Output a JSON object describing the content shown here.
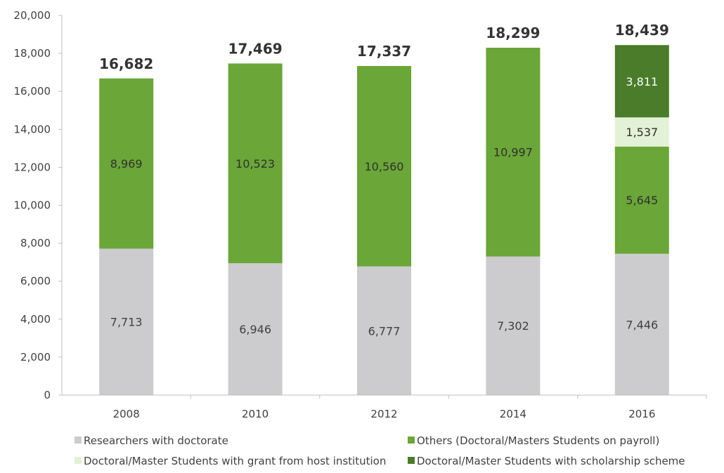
{
  "chart_data": {
    "type": "bar",
    "stacked": true,
    "categories": [
      "2008",
      "2010",
      "2012",
      "2014",
      "2016"
    ],
    "series": [
      {
        "name": "Researchers with doctorate",
        "color": "#cccccf",
        "label_color": "#404040",
        "values": [
          7713,
          6946,
          6777,
          7302,
          7446
        ],
        "labels": [
          "7,713",
          "6,946",
          "6,777",
          "7,302",
          "7,446"
        ]
      },
      {
        "name": "Others (Doctoral/Masters Students on payroll)",
        "color": "#6aa638",
        "label_color": "#303030",
        "values": [
          8969,
          10523,
          10560,
          10997,
          5645
        ],
        "labels": [
          "8,969",
          "10,523",
          "10,560",
          "10,997",
          "5,645"
        ]
      },
      {
        "name": "Doctoral/Master Students with grant from host institution",
        "color": "#e3f1d6",
        "label_color": "#303030",
        "values": [
          null,
          null,
          null,
          null,
          1537
        ],
        "labels": [
          null,
          null,
          null,
          null,
          "1,537"
        ]
      },
      {
        "name": "Doctoral/Master Students with scholarship scheme",
        "color": "#4a7c2a",
        "label_color": "#ffffff",
        "values": [
          null,
          null,
          null,
          null,
          3811
        ],
        "labels": [
          null,
          null,
          null,
          null,
          "3,811"
        ]
      }
    ],
    "totals": [
      16682,
      17469,
      17337,
      18299,
      18439
    ],
    "total_labels": [
      "16,682",
      "17,469",
      "17,337",
      "18,299",
      "18,439"
    ],
    "ylim": [
      0,
      20000
    ],
    "y_ticks": [
      0,
      2000,
      4000,
      6000,
      8000,
      10000,
      12000,
      14000,
      16000,
      18000,
      20000
    ],
    "y_tick_labels": [
      "0",
      "2,000",
      "4,000",
      "6,000",
      "8,000",
      "10,000",
      "12,000",
      "14,000",
      "16,000",
      "18,000",
      "20,000"
    ],
    "grid": false,
    "legend_position": "bottom",
    "axis_color": "#bfbfbf"
  }
}
